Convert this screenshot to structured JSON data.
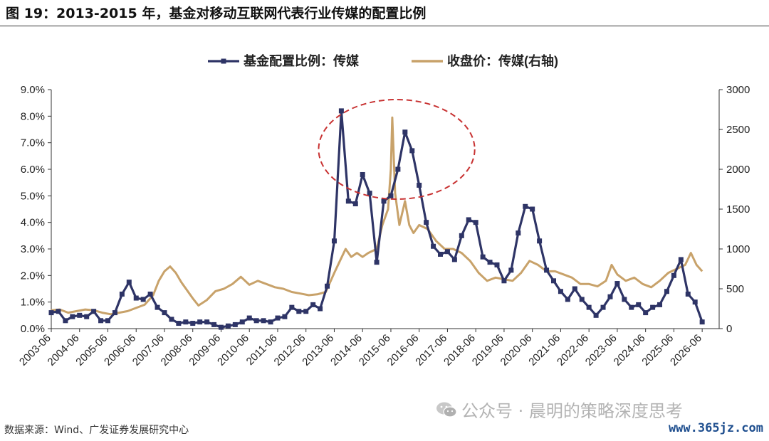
{
  "figure_title": "图 19：2013-2015 年，基金对移动互联网代表行业传媒的配置比例",
  "source_note": "数据来源：Wind、广发证券发展研究中心",
  "watermark_text": "公众号 · 晨明的策略深度思考",
  "site_mark": "www.365jz.com",
  "chart_data": {
    "type": "line",
    "title": "",
    "legend_position": "top",
    "x_tick_labels": [
      "2003-06",
      "2004-06",
      "2005-06",
      "2006-06",
      "2007-06",
      "2008-06",
      "2009-06",
      "2010-06",
      "2011-06",
      "2012-06",
      "2013-06",
      "2014-06",
      "2015-06",
      "2016-06",
      "2017-06",
      "2018-06",
      "2019-06",
      "2020-06",
      "2021-06",
      "2022-06",
      "2023-06",
      "2024-06",
      "2025-06",
      "2026-06"
    ],
    "x_domain": [
      0,
      23.6
    ],
    "y_left": {
      "min": 0,
      "max": 0.09,
      "ticks": [
        "0.0%",
        "1.0%",
        "2.0%",
        "3.0%",
        "4.0%",
        "5.0%",
        "6.0%",
        "7.0%",
        "8.0%",
        "9.0%"
      ]
    },
    "y_right": {
      "min": 0,
      "max": 3000,
      "ticks": [
        "0",
        "500",
        "1000",
        "1500",
        "2000",
        "2500",
        "3000"
      ]
    },
    "grid": false,
    "series": [
      {
        "name": "基金配置比例：传媒",
        "axis": "left",
        "color": "#2e3466",
        "marker": "square",
        "points": [
          [
            0,
            0.006
          ],
          [
            0.25,
            0.0065
          ],
          [
            0.5,
            0.003
          ],
          [
            0.75,
            0.0045
          ],
          [
            1,
            0.005
          ],
          [
            1.25,
            0.0045
          ],
          [
            1.5,
            0.0065
          ],
          [
            1.75,
            0.003
          ],
          [
            2,
            0.003
          ],
          [
            2.25,
            0.006
          ],
          [
            2.5,
            0.013
          ],
          [
            2.75,
            0.0175
          ],
          [
            3,
            0.0115
          ],
          [
            3.25,
            0.011
          ],
          [
            3.5,
            0.013
          ],
          [
            3.75,
            0.008
          ],
          [
            4,
            0.006
          ],
          [
            4.25,
            0.0035
          ],
          [
            4.5,
            0.002
          ],
          [
            4.75,
            0.0025
          ],
          [
            5,
            0.002
          ],
          [
            5.25,
            0.0025
          ],
          [
            5.5,
            0.0025
          ],
          [
            5.75,
            0.0015
          ],
          [
            6,
            0.0005
          ],
          [
            6.25,
            0.001
          ],
          [
            6.5,
            0.0015
          ],
          [
            6.75,
            0.0025
          ],
          [
            7,
            0.004
          ],
          [
            7.25,
            0.003
          ],
          [
            7.5,
            0.003
          ],
          [
            7.75,
            0.0025
          ],
          [
            8,
            0.004
          ],
          [
            8.25,
            0.0045
          ],
          [
            8.5,
            0.008
          ],
          [
            8.75,
            0.0065
          ],
          [
            9,
            0.0065
          ],
          [
            9.25,
            0.009
          ],
          [
            9.5,
            0.0075
          ],
          [
            9.75,
            0.016
          ],
          [
            10,
            0.033
          ],
          [
            10.25,
            0.082
          ],
          [
            10.5,
            0.048
          ],
          [
            10.75,
            0.047
          ],
          [
            11,
            0.058
          ],
          [
            11.25,
            0.051
          ],
          [
            11.5,
            0.025
          ],
          [
            11.75,
            0.048
          ],
          [
            12,
            0.05
          ],
          [
            12.25,
            0.06
          ],
          [
            12.5,
            0.074
          ],
          [
            12.75,
            0.067
          ],
          [
            13,
            0.054
          ],
          [
            13.25,
            0.04
          ],
          [
            13.5,
            0.031
          ],
          [
            13.75,
            0.028
          ],
          [
            14,
            0.029
          ],
          [
            14.25,
            0.026
          ],
          [
            14.5,
            0.035
          ],
          [
            14.75,
            0.041
          ],
          [
            15,
            0.04
          ],
          [
            15.25,
            0.027
          ],
          [
            15.5,
            0.025
          ],
          [
            15.75,
            0.024
          ],
          [
            16,
            0.018
          ],
          [
            16.25,
            0.022
          ],
          [
            16.5,
            0.036
          ],
          [
            16.75,
            0.046
          ],
          [
            17,
            0.045
          ],
          [
            17.25,
            0.033
          ],
          [
            17.5,
            0.022
          ],
          [
            17.75,
            0.018
          ],
          [
            18,
            0.014
          ],
          [
            18.25,
            0.011
          ],
          [
            18.5,
            0.015
          ],
          [
            18.75,
            0.011
          ],
          [
            19,
            0.008
          ],
          [
            19.25,
            0.005
          ],
          [
            19.5,
            0.008
          ],
          [
            19.75,
            0.012
          ],
          [
            20,
            0.017
          ],
          [
            20.25,
            0.011
          ],
          [
            20.5,
            0.008
          ],
          [
            20.75,
            0.009
          ],
          [
            21,
            0.006
          ],
          [
            21.25,
            0.008
          ],
          [
            21.5,
            0.009
          ],
          [
            21.75,
            0.014
          ],
          [
            22,
            0.02
          ],
          [
            22.25,
            0.026
          ],
          [
            22.5,
            0.013
          ],
          [
            22.75,
            0.01
          ],
          [
            23,
            0.0025
          ]
        ]
      },
      {
        "name": "收盘价：传媒(右轴)",
        "axis": "right",
        "color": "#c8a26a",
        "marker": "none",
        "points": [
          [
            0,
            230
          ],
          [
            0.3,
            240
          ],
          [
            0.6,
            200
          ],
          [
            0.9,
            220
          ],
          [
            1.2,
            240
          ],
          [
            1.5,
            230
          ],
          [
            1.8,
            200
          ],
          [
            2.1,
            180
          ],
          [
            2.4,
            200
          ],
          [
            2.7,
            220
          ],
          [
            3,
            260
          ],
          [
            3.3,
            300
          ],
          [
            3.6,
            420
          ],
          [
            3.8,
            600
          ],
          [
            4,
            720
          ],
          [
            4.2,
            780
          ],
          [
            4.4,
            700
          ],
          [
            4.6,
            580
          ],
          [
            4.8,
            480
          ],
          [
            5,
            380
          ],
          [
            5.2,
            290
          ],
          [
            5.5,
            360
          ],
          [
            5.8,
            470
          ],
          [
            6.1,
            500
          ],
          [
            6.4,
            560
          ],
          [
            6.7,
            650
          ],
          [
            7,
            550
          ],
          [
            7.3,
            600
          ],
          [
            7.6,
            560
          ],
          [
            7.9,
            520
          ],
          [
            8.2,
            500
          ],
          [
            8.5,
            460
          ],
          [
            8.8,
            440
          ],
          [
            9.1,
            420
          ],
          [
            9.4,
            430
          ],
          [
            9.7,
            460
          ],
          [
            10,
            700
          ],
          [
            10.2,
            850
          ],
          [
            10.4,
            1000
          ],
          [
            10.6,
            900
          ],
          [
            10.8,
            950
          ],
          [
            11,
            900
          ],
          [
            11.2,
            950
          ],
          [
            11.5,
            1000
          ],
          [
            11.7,
            1300
          ],
          [
            11.9,
            1500
          ],
          [
            12,
            2000
          ],
          [
            12.05,
            2650
          ],
          [
            12.15,
            1700
          ],
          [
            12.3,
            1300
          ],
          [
            12.5,
            1600
          ],
          [
            12.65,
            1300
          ],
          [
            12.8,
            1200
          ],
          [
            13,
            1300
          ],
          [
            13.3,
            1250
          ],
          [
            13.6,
            1100
          ],
          [
            13.9,
            1000
          ],
          [
            14.2,
            1000
          ],
          [
            14.5,
            950
          ],
          [
            14.8,
            850
          ],
          [
            15.1,
            700
          ],
          [
            15.4,
            600
          ],
          [
            15.7,
            640
          ],
          [
            16,
            620
          ],
          [
            16.3,
            600
          ],
          [
            16.6,
            700
          ],
          [
            16.9,
            850
          ],
          [
            17.2,
            800
          ],
          [
            17.5,
            720
          ],
          [
            17.8,
            720
          ],
          [
            18.1,
            680
          ],
          [
            18.4,
            640
          ],
          [
            18.7,
            560
          ],
          [
            19,
            560
          ],
          [
            19.3,
            530
          ],
          [
            19.6,
            600
          ],
          [
            19.8,
            800
          ],
          [
            20,
            680
          ],
          [
            20.3,
            600
          ],
          [
            20.6,
            640
          ],
          [
            20.9,
            560
          ],
          [
            21.2,
            520
          ],
          [
            21.5,
            600
          ],
          [
            21.8,
            700
          ],
          [
            22.1,
            750
          ],
          [
            22.4,
            800
          ],
          [
            22.6,
            950
          ],
          [
            22.8,
            800
          ],
          [
            23,
            720
          ]
        ]
      }
    ],
    "annotations": [
      {
        "type": "ellipse",
        "style": "dashed",
        "color": "#c83232",
        "encloses_x_range": [
          "2013-06",
          "2016-06"
        ]
      }
    ]
  }
}
